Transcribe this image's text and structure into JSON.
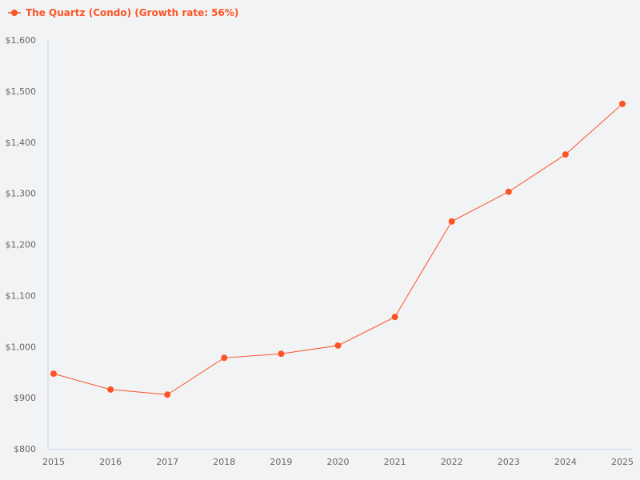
{
  "chart_data": {
    "type": "line",
    "title": "",
    "xlabel": "",
    "ylabel": "",
    "categories": [
      "2015",
      "2016",
      "2017",
      "2018",
      "2019",
      "2020",
      "2021",
      "2022",
      "2023",
      "2024",
      "2025"
    ],
    "series": [
      {
        "name": "The Quartz (Condo) (Growth rate: 56%)",
        "values": [
          947,
          916,
          906,
          978,
          986,
          1002,
          1058,
          1245,
          1303,
          1376,
          1475
        ]
      }
    ],
    "ylim": [
      800,
      1600
    ],
    "yticks": [
      "$800",
      "$900",
      "$1,000",
      "$1,100",
      "$1,200",
      "$1,300",
      "$1,400",
      "$1,500",
      "$1,600"
    ],
    "grid": false,
    "legend_position": "top-left",
    "color": "#fc5424"
  }
}
